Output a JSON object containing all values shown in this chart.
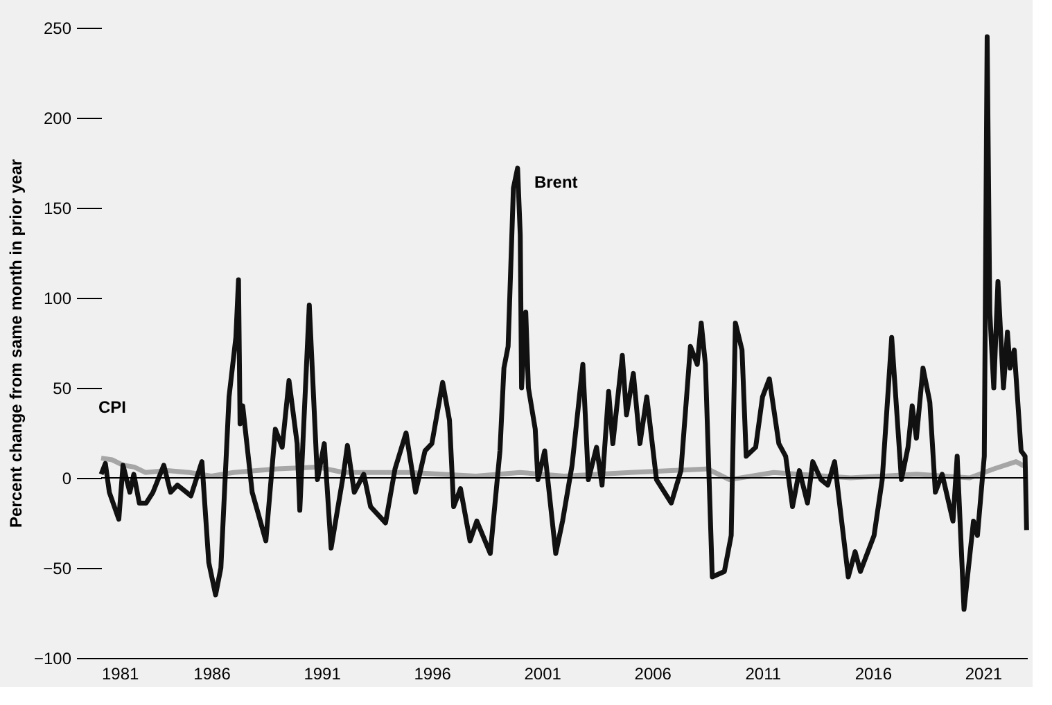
{
  "chart_data": {
    "type": "line",
    "ylabel": "Percent change from same month in prior year",
    "xlim": [
      1981,
      2023
    ],
    "xticks": [
      1981,
      1986,
      1991,
      1996,
      2001,
      2006,
      2011,
      2016,
      2021
    ],
    "ylim": [
      -100,
      250
    ],
    "yticks": [
      -100,
      -50,
      0,
      50,
      100,
      150,
      200,
      250
    ],
    "grid": false,
    "line_style": "solid",
    "marker": "none",
    "ref_lines": [
      {
        "axis": "y",
        "value": 0,
        "color": "#000000"
      }
    ],
    "series": [
      {
        "name": "CPI",
        "color": "#a6a6a6",
        "x": [
          1981.0,
          1981.5,
          1982.0,
          1982.5,
          1983.0,
          1984.0,
          1985.0,
          1986.0,
          1987.0,
          1989.0,
          1990.8,
          1992.0,
          1995.0,
          1998.0,
          2000.0,
          2002.0,
          2005.0,
          2008.5,
          2009.5,
          2011.5,
          2015.0,
          2018.0,
          2020.4,
          2021.5,
          2022.5,
          2022.95
        ],
        "values": [
          11,
          10,
          7,
          6,
          3,
          4,
          3,
          1,
          3,
          5,
          6,
          3,
          3,
          1,
          3,
          1,
          3,
          5,
          -1,
          3,
          0,
          2,
          0,
          5,
          9,
          6
        ]
      },
      {
        "name": "Brent",
        "color": "#111111",
        "x": [
          1981.0,
          1981.19,
          1981.37,
          1981.8,
          1981.99,
          1982.3,
          1982.48,
          1982.73,
          1983.04,
          1983.35,
          1983.84,
          1984.15,
          1984.46,
          1985.07,
          1985.57,
          1985.88,
          1986.19,
          1986.43,
          1986.8,
          1987.11,
          1987.23,
          1987.3,
          1987.42,
          1987.85,
          1988.47,
          1988.9,
          1989.21,
          1989.52,
          1989.89,
          1990.01,
          1990.44,
          1990.81,
          1991.12,
          1991.43,
          1991.99,
          1992.17,
          1992.48,
          1992.91,
          1993.22,
          1993.9,
          1994.33,
          1994.83,
          1995.26,
          1995.69,
          1996.0,
          1996.49,
          1996.8,
          1996.99,
          1997.3,
          1997.73,
          1998.04,
          1998.65,
          1999.09,
          1999.27,
          1999.46,
          1999.7,
          1999.89,
          2000.01,
          2000.07,
          2000.26,
          2000.38,
          2000.69,
          2000.81,
          2001.12,
          2001.62,
          2001.93,
          2002.36,
          2002.85,
          2003.1,
          2003.47,
          2003.72,
          2004.02,
          2004.21,
          2004.64,
          2004.83,
          2005.14,
          2005.44,
          2005.75,
          2006.19,
          2006.86,
          2007.3,
          2007.73,
          2008.04,
          2008.22,
          2008.41,
          2008.72,
          2009.27,
          2009.58,
          2009.77,
          2010.07,
          2010.26,
          2010.69,
          2011.0,
          2011.31,
          2011.74,
          2012.05,
          2012.36,
          2012.67,
          2013.04,
          2013.28,
          2013.65,
          2013.96,
          2014.27,
          2014.89,
          2015.2,
          2015.44,
          2016.06,
          2016.43,
          2016.86,
          2017.3,
          2017.6,
          2017.79,
          2017.98,
          2018.28,
          2018.59,
          2018.84,
          2019.15,
          2019.64,
          2019.83,
          2020.14,
          2020.57,
          2020.75,
          2021.06,
          2021.19,
          2021.31,
          2021.49,
          2021.68,
          2021.93,
          2022.11,
          2022.23,
          2022.42,
          2022.73,
          2022.91,
          2022.98
        ],
        "values": [
          2,
          8,
          -8,
          -23,
          7,
          -8,
          2,
          -14,
          -14,
          -8,
          7,
          -8,
          -4,
          -10,
          9,
          -47,
          -65,
          -50,
          45,
          78,
          110,
          30,
          40,
          -8,
          -35,
          27,
          17,
          54,
          19,
          -18,
          96,
          -1,
          19,
          -39,
          2,
          18,
          -8,
          2,
          -16,
          -25,
          5,
          25,
          -8,
          15,
          19,
          53,
          32,
          -16,
          -6,
          -35,
          -24,
          -42,
          15,
          61,
          73,
          161,
          172,
          135,
          50,
          92,
          50,
          27,
          -1,
          15,
          -42,
          -24,
          7,
          63,
          -1,
          17,
          -4,
          48,
          19,
          68,
          35,
          58,
          19,
          45,
          -1,
          -14,
          4,
          73,
          63,
          86,
          63,
          -55,
          -52,
          -32,
          86,
          71,
          12,
          17,
          45,
          55,
          19,
          12,
          -16,
          4,
          -14,
          9,
          -1,
          -4,
          9,
          -55,
          -41,
          -52,
          -32,
          -1,
          78,
          -1,
          17,
          40,
          22,
          61,
          42,
          -8,
          2,
          -24,
          12,
          -73,
          -24,
          -32,
          12,
          245,
          92,
          50,
          109,
          50,
          81,
          61,
          71,
          15,
          12,
          -29
        ]
      }
    ]
  }
}
